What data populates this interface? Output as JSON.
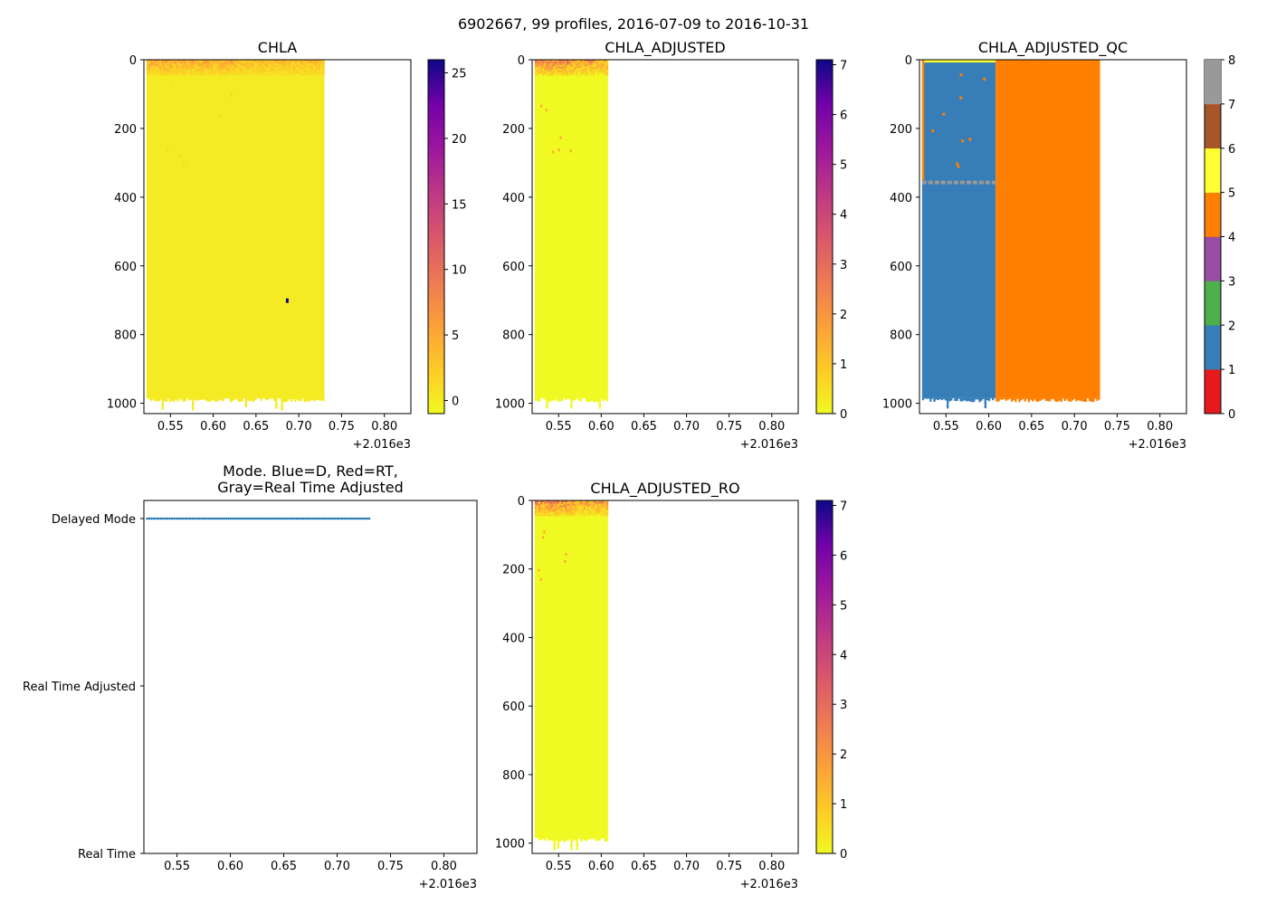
{
  "figure": {
    "suptitle": "6902667, 99 profiles, 2016-07-09 to 2016-10-31"
  },
  "chart_data": [
    {
      "id": "chla",
      "type": "heatmap",
      "title": "CHLA",
      "x_offset_label": "+2.016e3",
      "x_ticks": [
        "0.55",
        "0.60",
        "0.65",
        "0.70",
        "0.75",
        "0.80"
      ],
      "xlim": [
        0.519,
        0.831
      ],
      "y_ticks": [
        "0",
        "200",
        "400",
        "600",
        "800",
        "1000"
      ],
      "ylim": [
        1030,
        0
      ],
      "data_x_range": [
        0.522,
        0.73
      ],
      "colormap": "plasma_r",
      "colorbar": {
        "ticks": [
          "0",
          "5",
          "10",
          "15",
          "20",
          "25"
        ],
        "range": [
          -1,
          26
        ]
      },
      "features": {
        "surface_max_mg_m3": 6,
        "outlier_point": {
          "x": 0.686,
          "depth": 700,
          "value": 26
        }
      }
    },
    {
      "id": "chla-adjusted",
      "type": "heatmap",
      "title": "CHLA_ADJUSTED",
      "x_offset_label": "+2.016e3",
      "x_ticks": [
        "0.55",
        "0.60",
        "0.65",
        "0.70",
        "0.75",
        "0.80"
      ],
      "xlim": [
        0.519,
        0.831
      ],
      "y_ticks": [
        "0",
        "200",
        "400",
        "600",
        "800",
        "1000"
      ],
      "ylim": [
        1030,
        0
      ],
      "data_x_range": [
        0.522,
        0.608
      ],
      "colormap": "plasma_r",
      "colorbar": {
        "ticks": [
          "0",
          "1",
          "2",
          "3",
          "4",
          "5",
          "6",
          "7"
        ],
        "range": [
          0,
          7.1
        ]
      }
    },
    {
      "id": "chla-adjusted-qc",
      "type": "heatmap",
      "title": "CHLA_ADJUSTED_QC",
      "x_offset_label": "+2.016e3",
      "x_ticks": [
        "0.55",
        "0.60",
        "0.65",
        "0.70",
        "0.75",
        "0.80"
      ],
      "xlim": [
        0.519,
        0.831
      ],
      "y_ticks": [
        "0",
        "200",
        "400",
        "600",
        "800",
        "1000"
      ],
      "ylim": [
        1030,
        0
      ],
      "colormap": "Set1",
      "qc_regions": [
        {
          "x0": 0.522,
          "x1": 0.608,
          "flag": 1
        },
        {
          "x0": 0.608,
          "x1": 0.73,
          "flag": 4
        }
      ],
      "colorbar": {
        "ticks": [
          "0",
          "1",
          "2",
          "3",
          "4",
          "5",
          "6",
          "7",
          "8"
        ],
        "colors": [
          "#e41a1c",
          "#377eb8",
          "#4daf4a",
          "#984ea3",
          "#ff7f00",
          "#ffff33",
          "#a65628",
          "#f781bf",
          "#999999"
        ]
      }
    },
    {
      "id": "mode",
      "type": "scatter",
      "title": "Mode. Blue=D, Red=RT,",
      "title_line2": "Gray=Real Time Adjusted",
      "x_offset_label": "+2.016e3",
      "x_ticks": [
        "0.55",
        "0.60",
        "0.65",
        "0.70",
        "0.75",
        "0.80"
      ],
      "xlim": [
        0.519,
        0.831
      ],
      "y_categories": [
        "Delayed Mode",
        "Real Time Adjusted",
        "Real Time"
      ],
      "points": {
        "count": 99,
        "x_range": [
          0.522,
          0.73
        ],
        "category": "Delayed Mode",
        "color": "#1f77b4"
      }
    },
    {
      "id": "chla-adjusted-ro",
      "type": "heatmap",
      "title": "CHLA_ADJUSTED_RO",
      "x_offset_label": "+2.016e3",
      "x_ticks": [
        "0.55",
        "0.60",
        "0.65",
        "0.70",
        "0.75",
        "0.80"
      ],
      "xlim": [
        0.519,
        0.831
      ],
      "y_ticks": [
        "0",
        "200",
        "400",
        "600",
        "800",
        "1000"
      ],
      "ylim": [
        1030,
        0
      ],
      "data_x_range": [
        0.522,
        0.608
      ],
      "colormap": "plasma_r",
      "colorbar": {
        "ticks": [
          "0",
          "1",
          "2",
          "3",
          "4",
          "5",
          "6",
          "7"
        ],
        "range": [
          0,
          7.1
        ]
      }
    }
  ]
}
